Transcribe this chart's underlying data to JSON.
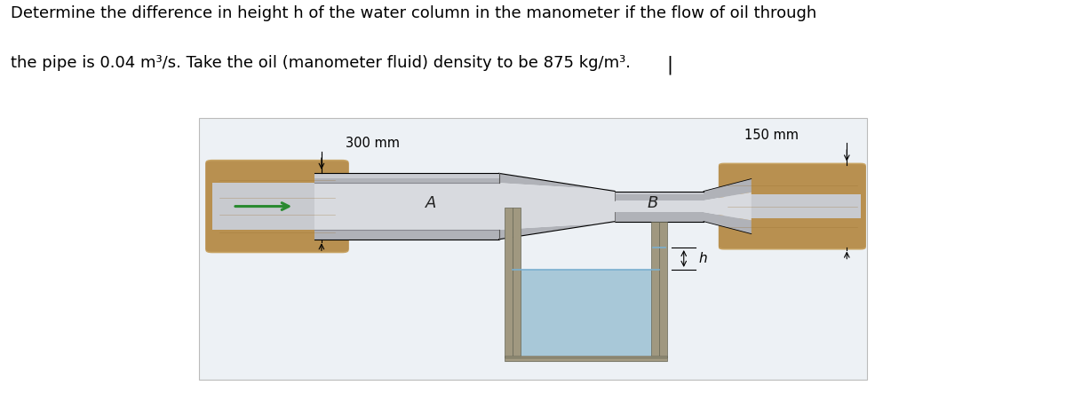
{
  "title_line1": "Determine the difference in height h of the water column in the manometer if the flow of oil through",
  "title_line2": "the pipe is 0.04 m³/s. Take the oil (manometer fluid) density to be 875 kg/m³.",
  "title_fontsize": 13.0,
  "fig_width": 12.0,
  "fig_height": 4.43,
  "dpi": 100,
  "box_bg": "#edf1f5",
  "brown_outer": "#c8a464",
  "brown_inner": "#b8955a",
  "gray_wall": "#b0b2b8",
  "gray_bore": "#c8cacf",
  "gray_light_bore": "#d8dadf",
  "tube_color": "#a09880",
  "fluid_color": "#a8c8d8",
  "fluid_top_color": "#7aafcf",
  "arrow_color": "#2a8a30",
  "dim_line_color": "#333333",
  "label_300mm": "300 mm",
  "label_150mm": "150 mm",
  "label_A": "A",
  "label_B": "B",
  "label_h": "h"
}
